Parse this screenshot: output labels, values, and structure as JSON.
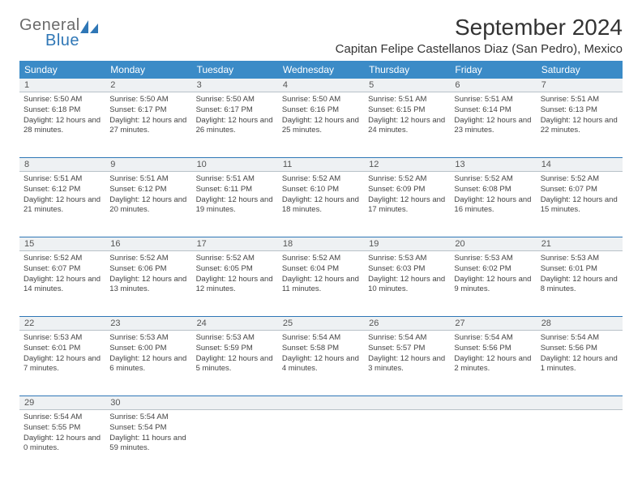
{
  "brand": {
    "general": "General",
    "blue": "Blue",
    "icon_color": "#2f77b6",
    "blue_text_color": "#2f77b6",
    "general_text_color": "#6b6b6b"
  },
  "title": "September 2024",
  "location": "Capitan Felipe Castellanos Diaz (San Pedro), Mexico",
  "colors": {
    "header_bg": "#3b8bc7",
    "header_text": "#ffffff",
    "row_divider": "#2f77b6",
    "daynum_bg": "#eef1f3",
    "daynum_divider": "#b9c2c9",
    "body_text": "#444444",
    "background": "#ffffff"
  },
  "fonts": {
    "title_size": 28,
    "location_size": 15,
    "dow_size": 12,
    "daynum_size": 11,
    "cell_size": 9.5
  },
  "days_of_week": [
    "Sunday",
    "Monday",
    "Tuesday",
    "Wednesday",
    "Thursday",
    "Friday",
    "Saturday"
  ],
  "weeks": [
    [
      {
        "n": "1",
        "sunrise": "5:50 AM",
        "sunset": "6:18 PM",
        "dl_h": "12",
        "dl_m": "28"
      },
      {
        "n": "2",
        "sunrise": "5:50 AM",
        "sunset": "6:17 PM",
        "dl_h": "12",
        "dl_m": "27"
      },
      {
        "n": "3",
        "sunrise": "5:50 AM",
        "sunset": "6:17 PM",
        "dl_h": "12",
        "dl_m": "26"
      },
      {
        "n": "4",
        "sunrise": "5:50 AM",
        "sunset": "6:16 PM",
        "dl_h": "12",
        "dl_m": "25"
      },
      {
        "n": "5",
        "sunrise": "5:51 AM",
        "sunset": "6:15 PM",
        "dl_h": "12",
        "dl_m": "24"
      },
      {
        "n": "6",
        "sunrise": "5:51 AM",
        "sunset": "6:14 PM",
        "dl_h": "12",
        "dl_m": "23"
      },
      {
        "n": "7",
        "sunrise": "5:51 AM",
        "sunset": "6:13 PM",
        "dl_h": "12",
        "dl_m": "22"
      }
    ],
    [
      {
        "n": "8",
        "sunrise": "5:51 AM",
        "sunset": "6:12 PM",
        "dl_h": "12",
        "dl_m": "21"
      },
      {
        "n": "9",
        "sunrise": "5:51 AM",
        "sunset": "6:12 PM",
        "dl_h": "12",
        "dl_m": "20"
      },
      {
        "n": "10",
        "sunrise": "5:51 AM",
        "sunset": "6:11 PM",
        "dl_h": "12",
        "dl_m": "19"
      },
      {
        "n": "11",
        "sunrise": "5:52 AM",
        "sunset": "6:10 PM",
        "dl_h": "12",
        "dl_m": "18"
      },
      {
        "n": "12",
        "sunrise": "5:52 AM",
        "sunset": "6:09 PM",
        "dl_h": "12",
        "dl_m": "17"
      },
      {
        "n": "13",
        "sunrise": "5:52 AM",
        "sunset": "6:08 PM",
        "dl_h": "12",
        "dl_m": "16"
      },
      {
        "n": "14",
        "sunrise": "5:52 AM",
        "sunset": "6:07 PM",
        "dl_h": "12",
        "dl_m": "15"
      }
    ],
    [
      {
        "n": "15",
        "sunrise": "5:52 AM",
        "sunset": "6:07 PM",
        "dl_h": "12",
        "dl_m": "14"
      },
      {
        "n": "16",
        "sunrise": "5:52 AM",
        "sunset": "6:06 PM",
        "dl_h": "12",
        "dl_m": "13"
      },
      {
        "n": "17",
        "sunrise": "5:52 AM",
        "sunset": "6:05 PM",
        "dl_h": "12",
        "dl_m": "12"
      },
      {
        "n": "18",
        "sunrise": "5:52 AM",
        "sunset": "6:04 PM",
        "dl_h": "12",
        "dl_m": "11"
      },
      {
        "n": "19",
        "sunrise": "5:53 AM",
        "sunset": "6:03 PM",
        "dl_h": "12",
        "dl_m": "10"
      },
      {
        "n": "20",
        "sunrise": "5:53 AM",
        "sunset": "6:02 PM",
        "dl_h": "12",
        "dl_m": "9"
      },
      {
        "n": "21",
        "sunrise": "5:53 AM",
        "sunset": "6:01 PM",
        "dl_h": "12",
        "dl_m": "8"
      }
    ],
    [
      {
        "n": "22",
        "sunrise": "5:53 AM",
        "sunset": "6:01 PM",
        "dl_h": "12",
        "dl_m": "7"
      },
      {
        "n": "23",
        "sunrise": "5:53 AM",
        "sunset": "6:00 PM",
        "dl_h": "12",
        "dl_m": "6"
      },
      {
        "n": "24",
        "sunrise": "5:53 AM",
        "sunset": "5:59 PM",
        "dl_h": "12",
        "dl_m": "5"
      },
      {
        "n": "25",
        "sunrise": "5:54 AM",
        "sunset": "5:58 PM",
        "dl_h": "12",
        "dl_m": "4"
      },
      {
        "n": "26",
        "sunrise": "5:54 AM",
        "sunset": "5:57 PM",
        "dl_h": "12",
        "dl_m": "3"
      },
      {
        "n": "27",
        "sunrise": "5:54 AM",
        "sunset": "5:56 PM",
        "dl_h": "12",
        "dl_m": "2"
      },
      {
        "n": "28",
        "sunrise": "5:54 AM",
        "sunset": "5:56 PM",
        "dl_h": "12",
        "dl_m": "1"
      }
    ],
    [
      {
        "n": "29",
        "sunrise": "5:54 AM",
        "sunset": "5:55 PM",
        "dl_h": "12",
        "dl_m": "0"
      },
      {
        "n": "30",
        "sunrise": "5:54 AM",
        "sunset": "5:54 PM",
        "dl_h": "11",
        "dl_m": "59"
      },
      {
        "n": "",
        "sunrise": "",
        "sunset": "",
        "dl_h": "",
        "dl_m": ""
      },
      {
        "n": "",
        "sunrise": "",
        "sunset": "",
        "dl_h": "",
        "dl_m": ""
      },
      {
        "n": "",
        "sunrise": "",
        "sunset": "",
        "dl_h": "",
        "dl_m": ""
      },
      {
        "n": "",
        "sunrise": "",
        "sunset": "",
        "dl_h": "",
        "dl_m": ""
      },
      {
        "n": "",
        "sunrise": "",
        "sunset": "",
        "dl_h": "",
        "dl_m": ""
      }
    ]
  ],
  "labels": {
    "sunrise": "Sunrise:",
    "sunset": "Sunset:",
    "daylight_prefix": "Daylight:",
    "hours_word": "hours",
    "and_word": "and",
    "minutes_word": "minutes."
  }
}
